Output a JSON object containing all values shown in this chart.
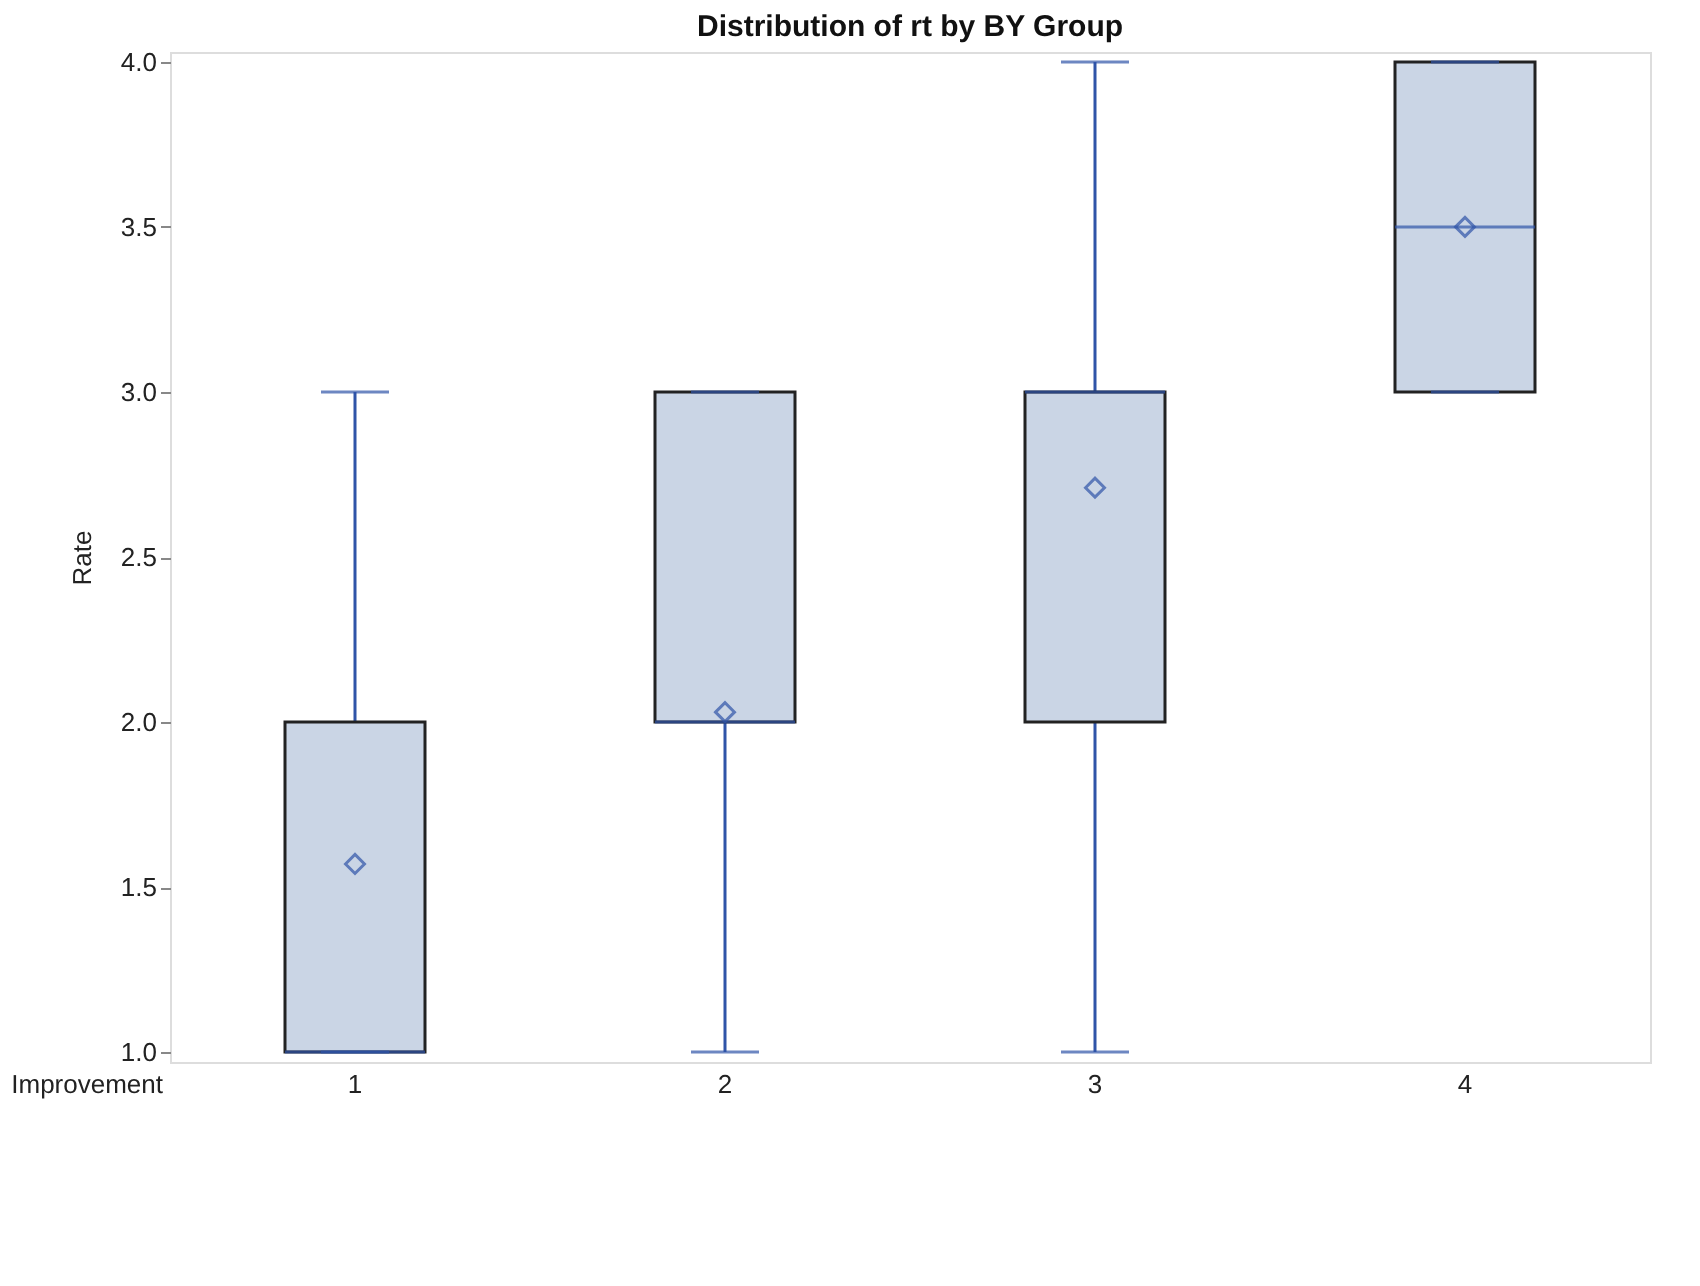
{
  "chart_data": {
    "type": "box",
    "title": "Distribution of rt by BY Group",
    "xlabel": "Improvement",
    "ylabel": "Rate",
    "categories": [
      "1",
      "2",
      "3",
      "4"
    ],
    "series": [
      {
        "color": "#cad5e5",
        "boxes": [
          {
            "low": 1,
            "q1": 1,
            "median": 1,
            "q3": 2,
            "high": 3,
            "mean": 1.57
          },
          {
            "low": 1,
            "q1": 2,
            "median": 2,
            "q3": 3,
            "high": 3,
            "mean": 2.03
          },
          {
            "low": 1,
            "q1": 2,
            "median": 3,
            "q3": 3,
            "high": 4,
            "mean": 2.71
          },
          {
            "low": 3,
            "q1": 3,
            "median": 3.5,
            "q3": 4,
            "high": 4,
            "mean": 3.5
          }
        ]
      }
    ],
    "ylim": [
      0.97,
      4.03
    ],
    "yticks": [
      {
        "value": 1,
        "label": "1.0"
      },
      1.5,
      {
        "value": 2,
        "label": "2.0"
      },
      2.5,
      {
        "value": 3,
        "label": "3.0"
      },
      3.5,
      {
        "value": 4,
        "label": "4.0"
      }
    ],
    "grid": false
  }
}
